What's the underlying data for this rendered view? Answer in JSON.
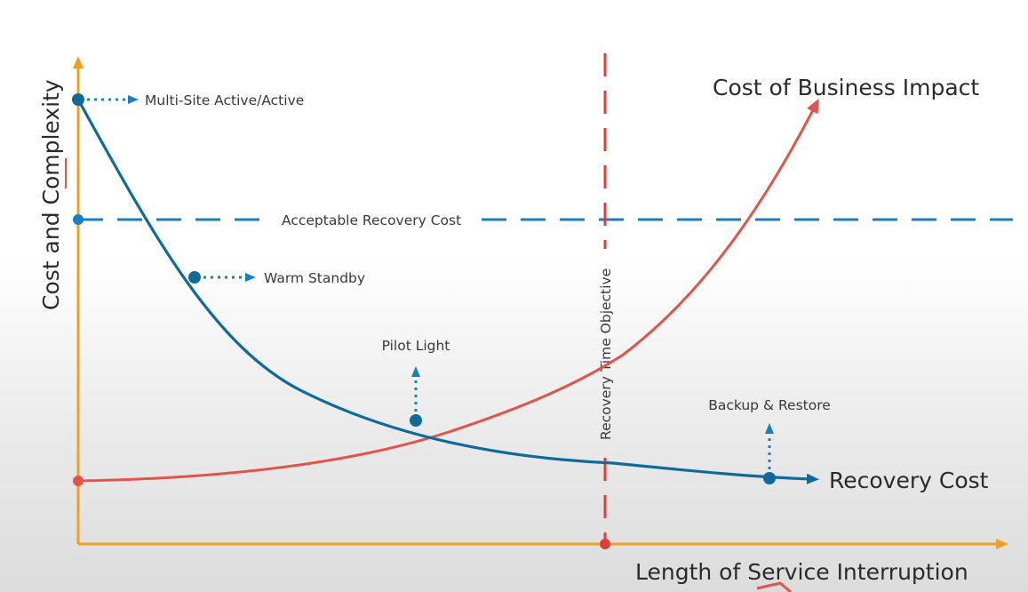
{
  "axes": {
    "y_label": "Cost and Complexity",
    "x_label": "Length of Service Interruption"
  },
  "lines": {
    "business_impact_label": "Cost of Business Impact",
    "recovery_cost_label": "Recovery Cost",
    "acceptable_cost_label": "Acceptable Recovery Cost",
    "rto_label": "Recovery Time Objective"
  },
  "strategies": {
    "multi_site": "Multi-Site Active/Active",
    "warm_standby": "Warm Standby",
    "pilot_light": "Pilot Light",
    "backup_restore": "Backup & Restore"
  },
  "colors": {
    "axis": "#f0a020",
    "recovery": "#0f6a9a",
    "dashed_blue": "#1a7ec0",
    "impact": "#e0544a",
    "rto": "#d8403c",
    "text": "#2b2b2b"
  }
}
